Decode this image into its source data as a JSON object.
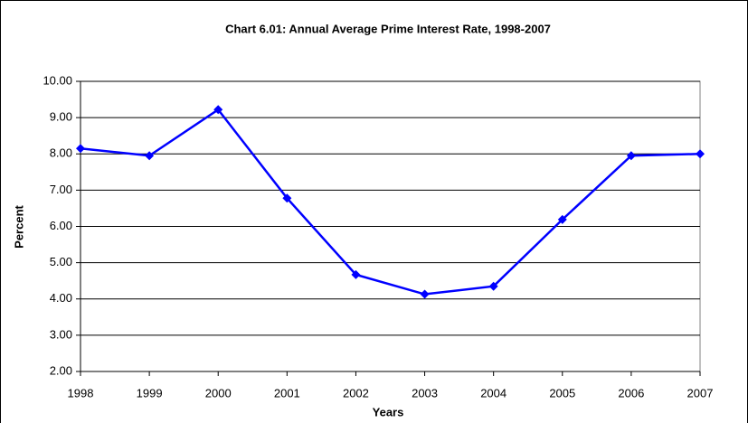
{
  "chart_data": {
    "type": "line",
    "title": "Chart 6.01: Annual Average Prime Interest Rate, 1998-2007",
    "x_label": "Years",
    "y_label": "Percent",
    "x": [
      1998,
      1999,
      2000,
      2001,
      2002,
      2003,
      2004,
      2005,
      2006,
      2007
    ],
    "series": [
      {
        "color": "#0000ff",
        "values": [
          8.15,
          7.95,
          9.22,
          6.78,
          4.67,
          4.13,
          4.35,
          6.19,
          7.95,
          8.0
        ]
      }
    ],
    "xlim": [
      1998,
      2007
    ],
    "xticks": [
      1998,
      1999,
      2000,
      2001,
      2002,
      2003,
      2004,
      2005,
      2006,
      2007
    ],
    "ylim": [
      2,
      10
    ],
    "yticks": [
      {
        "value": 2,
        "label": "2.00"
      },
      {
        "value": 3,
        "label": "3.00"
      },
      {
        "value": 4,
        "label": "4.00"
      },
      {
        "value": 5,
        "label": "5.00"
      },
      {
        "value": 6,
        "label": "6.00"
      },
      {
        "value": 7,
        "label": "7.00"
      },
      {
        "value": 8,
        "label": "8.00"
      },
      {
        "value": 9,
        "label": "9.00"
      },
      {
        "value": 10,
        "label": "10.00"
      }
    ],
    "grid": true
  }
}
